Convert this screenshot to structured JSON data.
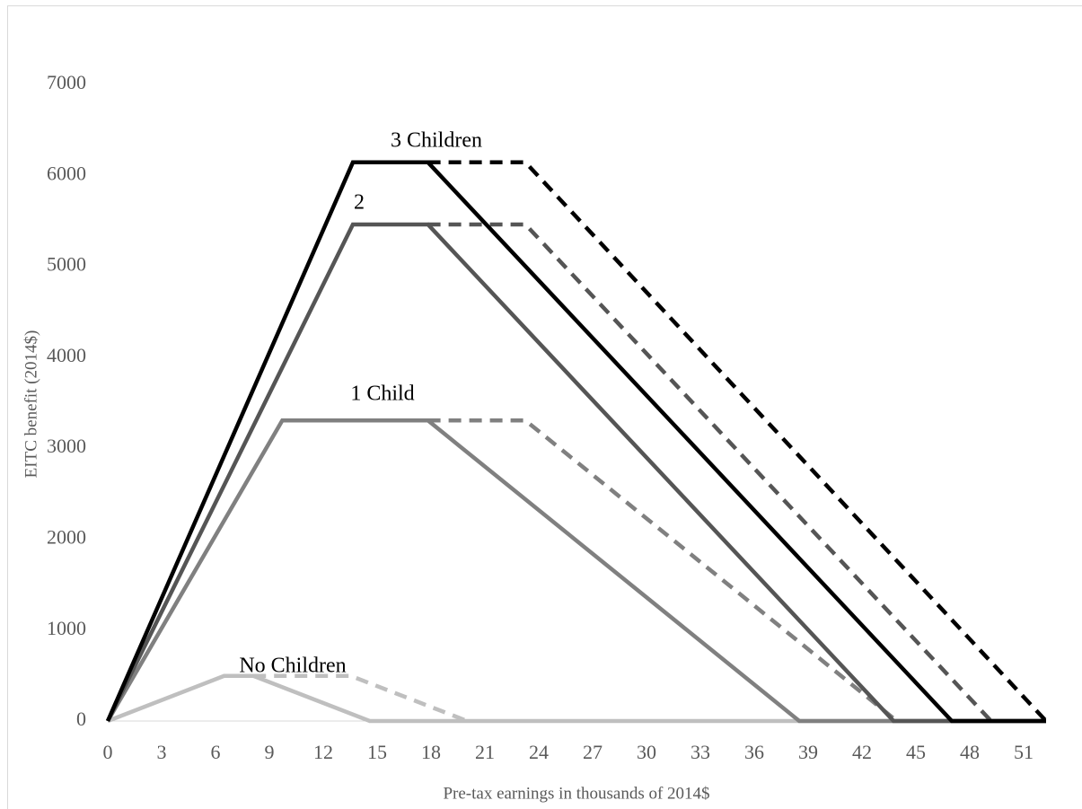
{
  "chart_data": {
    "type": "line",
    "xlabel": "Pre-tax earnings in thousands of  2014$",
    "ylabel": "EITC benefit (2014$)",
    "xlim": [
      0,
      52.25
    ],
    "ylim": [
      0,
      7000
    ],
    "xticks": [
      0,
      3,
      6,
      9,
      12,
      15,
      18,
      21,
      24,
      27,
      30,
      33,
      36,
      39,
      42,
      45,
      48,
      51
    ],
    "yticks": [
      0,
      1000,
      2000,
      3000,
      4000,
      5000,
      6000,
      7000
    ],
    "grid": false,
    "annotations": [
      "3 Children",
      "2",
      "1 Child",
      "No Children"
    ],
    "series": [
      {
        "color": "#bfbfbf",
        "dash": false,
        "x": [
          0,
          6.48,
          8.11,
          14.59,
          52.25
        ],
        "values": [
          0,
          496,
          496,
          0,
          0
        ]
      },
      {
        "color": "#bfbfbf",
        "dash": true,
        "x": [
          8.11,
          13.54,
          20.02
        ],
        "values": [
          496,
          496,
          0
        ]
      },
      {
        "color": "#808080",
        "dash": false,
        "x": [
          0,
          9.72,
          17.83,
          38.51,
          52.25
        ],
        "values": [
          0,
          3305,
          3305,
          0,
          0
        ]
      },
      {
        "color": "#808080",
        "dash": true,
        "x": [
          17.83,
          23.26,
          43.94
        ],
        "values": [
          3305,
          3305,
          0
        ]
      },
      {
        "color": "#555555",
        "dash": false,
        "x": [
          0,
          13.65,
          17.83,
          43.76,
          52.25
        ],
        "values": [
          0,
          5460,
          5460,
          0,
          0
        ]
      },
      {
        "color": "#555555",
        "dash": true,
        "x": [
          17.83,
          23.26,
          49.19
        ],
        "values": [
          5460,
          5460,
          0
        ]
      },
      {
        "color": "#000000",
        "dash": false,
        "x": [
          0,
          13.65,
          17.83,
          47.0,
          52.25
        ],
        "values": [
          0,
          6143,
          6143,
          0,
          0
        ]
      },
      {
        "color": "#000000",
        "dash": true,
        "x": [
          17.83,
          23.26,
          52.25
        ],
        "values": [
          6143,
          6143,
          0
        ]
      }
    ]
  }
}
